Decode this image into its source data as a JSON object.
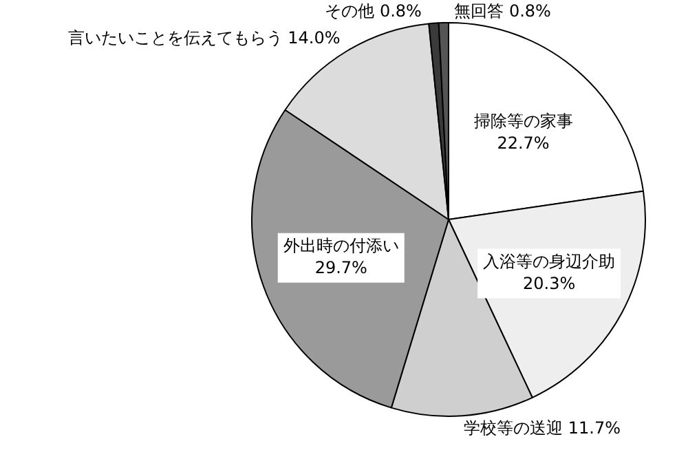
{
  "chart_data": {
    "type": "pie",
    "categories": [
      "掃除等の家事",
      "入浴等の身辺介助",
      "学校等の送迎",
      "外出時の付添い",
      "言いたいことを伝えてもらう",
      "その他",
      "無回答"
    ],
    "values": [
      22.7,
      20.3,
      11.7,
      29.7,
      14.0,
      0.8,
      0.8
    ],
    "value_labels": [
      "22.7%",
      "20.3%",
      "11.7%",
      "29.7%",
      "14.0%",
      "0.8%",
      "0.8%"
    ],
    "colors": [
      "#ffffff",
      "#eeeeee",
      "#cfcfcf",
      "#9a9a9a",
      "#dcdcdc",
      "#3a3a3a",
      "#555555"
    ],
    "legend": false
  }
}
